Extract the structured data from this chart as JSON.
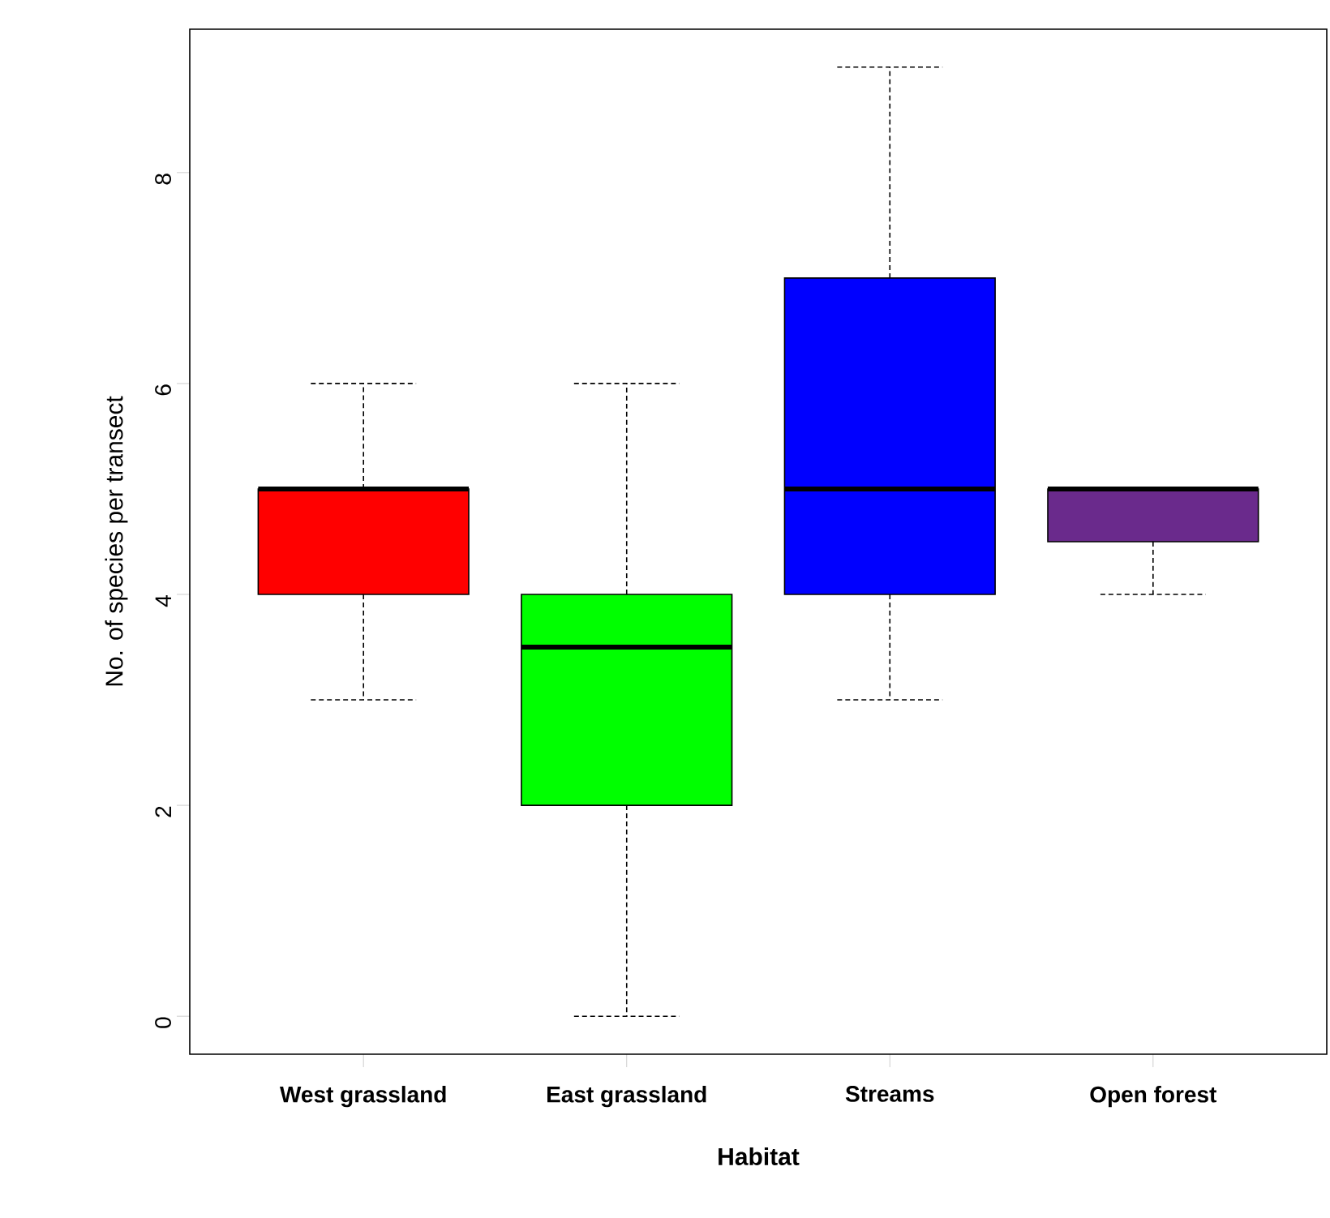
{
  "chart_data": {
    "type": "box",
    "xlabel": "Habitat",
    "ylabel": "No. of species per transect",
    "categories": [
      "West grassland",
      "East grassland",
      "Streams",
      "Open forest"
    ],
    "colors": [
      "#ff0000",
      "#00ff00",
      "#0000ff",
      "#6a2a8c"
    ],
    "boxes": [
      {
        "low": 3,
        "q1": 4,
        "median": 5,
        "q3": 5,
        "high": 6
      },
      {
        "low": 0,
        "q1": 2,
        "median": 3.5,
        "q3": 4,
        "high": 6
      },
      {
        "low": 3,
        "q1": 4,
        "median": 5,
        "q3": 7,
        "high": 9
      },
      {
        "low": 4,
        "q1": 4.5,
        "median": 5,
        "q3": 5,
        "high": 5
      }
    ],
    "ylim": [
      -0.36,
      9.36
    ],
    "yticks": [
      0,
      2,
      4,
      6,
      8
    ]
  }
}
